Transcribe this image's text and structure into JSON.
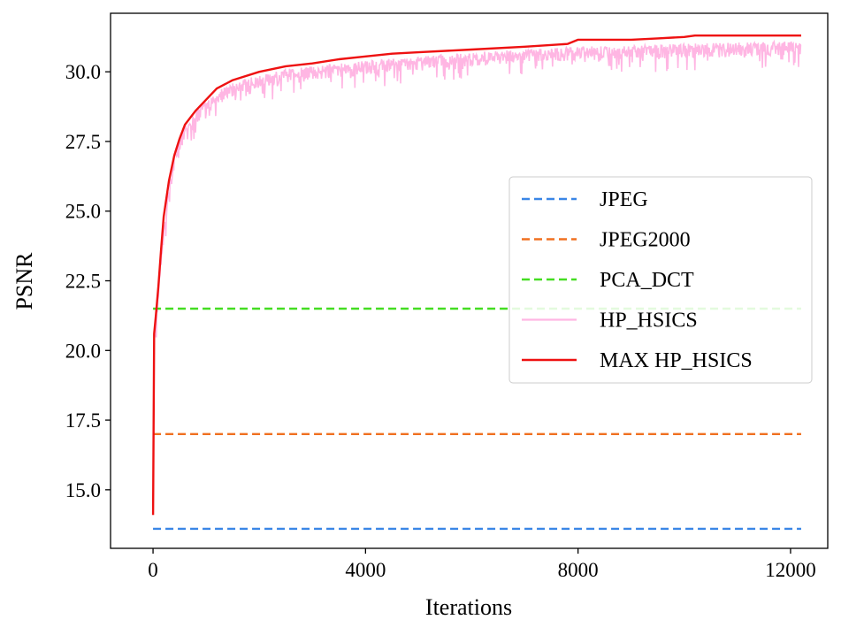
{
  "chart_data": {
    "type": "line",
    "title": "",
    "xlabel": "Iterations",
    "ylabel": "PSNR",
    "xlim": [
      -800,
      12700
    ],
    "ylim": [
      12.9,
      32.1
    ],
    "xticks": [
      0,
      4000,
      8000,
      12000
    ],
    "xtick_labels": [
      "0",
      "4000",
      "8000",
      "12000"
    ],
    "yticks": [
      15.0,
      17.5,
      20.0,
      22.5,
      25.0,
      27.5,
      30.0
    ],
    "ytick_labels": [
      "15.0",
      "17.5",
      "20.0",
      "22.5",
      "25.0",
      "27.5",
      "30.0"
    ],
    "grid": false,
    "legend_position": "center-right",
    "series": [
      {
        "name": "JPEG",
        "color": "#3a86e6",
        "style": "dashed",
        "x": [
          0,
          12200
        ],
        "y": [
          13.6,
          13.6
        ]
      },
      {
        "name": "JPEG2000",
        "color": "#f07020",
        "style": "dashed",
        "x": [
          0,
          12200
        ],
        "y": [
          17.0,
          17.0
        ]
      },
      {
        "name": "PCA_DCT",
        "color": "#44dd22",
        "style": "dashed",
        "x": [
          0,
          12200
        ],
        "y": [
          21.5,
          21.5
        ]
      },
      {
        "name": "HP_HSICS",
        "color": "#ffb6e3",
        "style": "noisy",
        "x": [
          0,
          20,
          50,
          100,
          150,
          200,
          300,
          400,
          500,
          600,
          800,
          1000,
          1200,
          1500,
          2000,
          2500,
          3000,
          3500,
          4000,
          5000,
          6000,
          7000,
          8000,
          9000,
          10000,
          11000,
          12200
        ],
        "y": [
          14.1,
          20.5,
          21.0,
          22.0,
          23.2,
          24.3,
          25.7,
          26.8,
          27.5,
          27.9,
          28.4,
          28.8,
          29.1,
          29.4,
          29.7,
          29.9,
          30.0,
          30.1,
          30.2,
          30.35,
          30.5,
          30.6,
          30.7,
          30.75,
          30.8,
          30.85,
          30.9
        ]
      },
      {
        "name": "MAX HP_HSICS",
        "color": "#ee1111",
        "style": "solid",
        "x": [
          0,
          20,
          50,
          100,
          150,
          200,
          300,
          400,
          500,
          600,
          800,
          1000,
          1200,
          1500,
          2000,
          2500,
          3000,
          3500,
          4000,
          4500,
          5000,
          6000,
          7000,
          7800,
          8000,
          9000,
          9500,
          10000,
          10200,
          11000,
          12200
        ],
        "y": [
          14.1,
          20.6,
          21.2,
          22.3,
          23.6,
          24.8,
          26.1,
          27.0,
          27.6,
          28.1,
          28.6,
          29.0,
          29.4,
          29.7,
          30.0,
          30.2,
          30.3,
          30.45,
          30.55,
          30.65,
          30.7,
          30.8,
          30.9,
          31.0,
          31.15,
          31.15,
          31.2,
          31.25,
          31.3,
          31.3,
          31.3
        ]
      }
    ]
  }
}
